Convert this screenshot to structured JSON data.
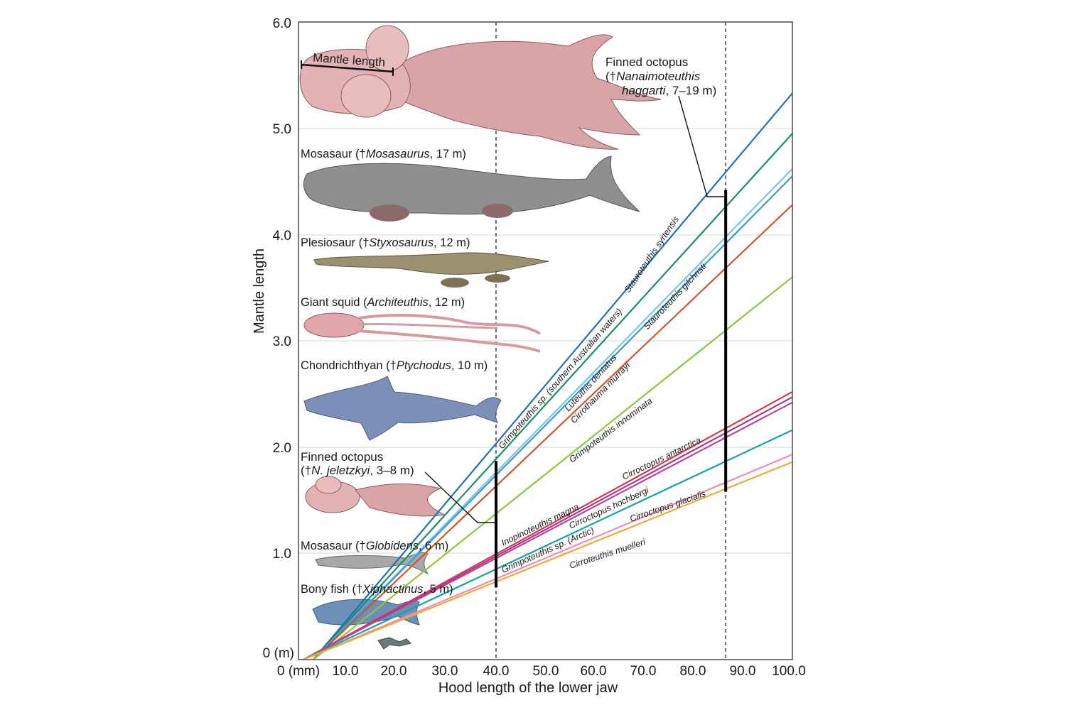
{
  "chart_data": {
    "type": "line",
    "title": "",
    "xlabel": "Hood length of the lower jaw",
    "ylabel": "Mantle length",
    "xlim": [
      0,
      100
    ],
    "ylim": [
      0,
      6
    ],
    "x_ticks": [
      "0 (mm)",
      "10.0",
      "20.0",
      "30.0",
      "40.0",
      "50.0",
      "60.0",
      "70.0",
      "80.0",
      "90.0",
      "100.0"
    ],
    "y_ticks": [
      "0 (m)",
      "1.0",
      "2.0",
      "3.0",
      "4.0",
      "5.0",
      "6.0"
    ],
    "reference_lines": [
      {
        "name": "N. jeletzkyi jaw",
        "x": 40.0,
        "y_range": [
          0.68,
          1.87
        ]
      },
      {
        "name": "N. haggarti jaw",
        "x": 86.5,
        "y_range": [
          1.58,
          4.42
        ]
      }
    ],
    "series": [
      {
        "name": "Stauroteuthis syrtensis",
        "color": "#1f6fb8",
        "x": [
          3,
          100
        ],
        "y": [
          0.0,
          5.33
        ]
      },
      {
        "name": "Grimpoteuthis sp. (southern Australian waters)",
        "color": "#1a8f63",
        "x": [
          3,
          100
        ],
        "y": [
          0.0,
          4.95
        ]
      },
      {
        "name": "Luteuthis dentatus",
        "color": "#7cc3ea",
        "x": [
          3,
          100
        ],
        "y": [
          0.0,
          4.62
        ]
      },
      {
        "name": "Cirrothauma murrayi",
        "color": "#3a9ad0",
        "x": [
          3,
          100
        ],
        "y": [
          0.0,
          4.55
        ]
      },
      {
        "name": "Stauroteuthis gilchristi",
        "color": "#d2552a",
        "x": [
          3,
          100
        ],
        "y": [
          0.0,
          4.28
        ]
      },
      {
        "name": "Grimpoteuthis innominata",
        "color": "#8cc63f",
        "x": [
          3,
          100
        ],
        "y": [
          0.0,
          3.6
        ]
      },
      {
        "name": "Inopinoteuthis magna",
        "color": "#d63a4a",
        "x": [
          1,
          100
        ],
        "y": [
          0.0,
          2.52
        ]
      },
      {
        "name": "Cirroctopus antarctica",
        "color": "#9b3d8f",
        "x": [
          1,
          100
        ],
        "y": [
          0.0,
          2.47
        ]
      },
      {
        "name": "Cirroctopus hochbergi",
        "color": "#c2409a",
        "x": [
          1,
          100
        ],
        "y": [
          0.0,
          2.42
        ]
      },
      {
        "name": "Grimpoteuthis sp. (Arctic)",
        "color": "#17a3a0",
        "x": [
          1,
          100
        ],
        "y": [
          0.0,
          2.16
        ]
      },
      {
        "name": "Cirroctopus glacialis",
        "color": "#f08bb4",
        "x": [
          1,
          100
        ],
        "y": [
          0.0,
          1.93
        ]
      },
      {
        "name": "Cirroteuthis muelleri",
        "color": "#f0a830",
        "x": [
          1,
          100
        ],
        "y": [
          0.0,
          1.86
        ]
      }
    ],
    "annotations": {
      "mantle_length": "Mantle length",
      "haggarti": {
        "line1": "Finned octopus",
        "line2a": "(†",
        "line2b": "Nanaimoteuthis",
        "line3a": "haggarti",
        "line3b": ", 7–19 m)"
      },
      "jeletzkyi": {
        "line1": "Finned octopus",
        "line2a": "(†",
        "line2b": "N. jeletzkyi",
        "line2c": ", 3–8 m)"
      }
    },
    "animals": [
      {
        "name": "mosasaurus",
        "pre": "Mosasaur (†",
        "italic": "Mosasaurus",
        "post": ", 17 m)"
      },
      {
        "name": "styxosaurus",
        "pre": "Plesiosaur (†",
        "italic": "Styxosaurus",
        "post": ", 12 m)"
      },
      {
        "name": "architeuthis",
        "pre": "Giant squid (",
        "italic": "Architeuthis",
        "post": ", 12 m)"
      },
      {
        "name": "ptychodus",
        "pre": "Chondrichthyan (†",
        "italic": "Ptychodus",
        "post": ", 10 m)"
      },
      {
        "name": "globidens",
        "pre": "Mosasaur (†",
        "italic": "Globidens",
        "post": ", 6 m)"
      },
      {
        "name": "xiphactinus",
        "pre": "Bony fish (†",
        "italic": "Xiphactinus",
        "post": ", 5 m)"
      }
    ]
  }
}
